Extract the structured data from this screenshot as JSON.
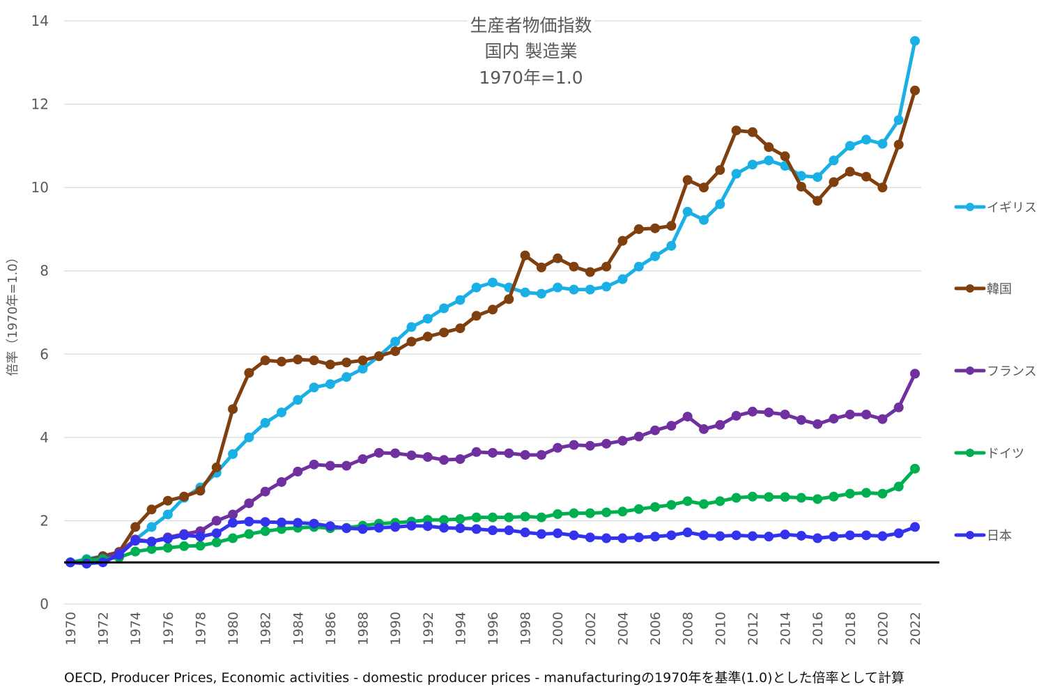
{
  "chart_data": {
    "type": "line",
    "title_lines": [
      "生産者物価指数",
      "国内 製造業",
      "1970年=1.0"
    ],
    "ylabel": "倍率（1970年=1.0）",
    "xlabel": "",
    "ylim": [
      0,
      14
    ],
    "yticks": [
      0,
      2,
      4,
      6,
      8,
      10,
      12,
      14
    ],
    "x": [
      1970,
      1971,
      1972,
      1973,
      1974,
      1975,
      1976,
      1977,
      1978,
      1979,
      1980,
      1981,
      1982,
      1983,
      1984,
      1985,
      1986,
      1987,
      1988,
      1989,
      1990,
      1991,
      1992,
      1993,
      1994,
      1995,
      1996,
      1997,
      1998,
      1999,
      2000,
      2001,
      2002,
      2003,
      2004,
      2005,
      2006,
      2007,
      2008,
      2009,
      2010,
      2011,
      2012,
      2013,
      2014,
      2015,
      2016,
      2017,
      2018,
      2019,
      2020,
      2021,
      2022
    ],
    "xtick_labels": [
      "1970",
      "1972",
      "1974",
      "1976",
      "1978",
      "1980",
      "1982",
      "1984",
      "1986",
      "1988",
      "1990",
      "1992",
      "1994",
      "1996",
      "1998",
      "2000",
      "2002",
      "2004",
      "2006",
      "2008",
      "2010",
      "2012",
      "2014",
      "2016",
      "2018",
      "2020",
      "2022"
    ],
    "reference_line": 1.0,
    "grid": true,
    "legend_position": "right",
    "series": [
      {
        "name": "イギリス",
        "color": "#1ab0e6",
        "values": [
          1.0,
          1.08,
          1.15,
          1.25,
          1.55,
          1.85,
          2.15,
          2.55,
          2.8,
          3.15,
          3.6,
          4.0,
          4.35,
          4.6,
          4.9,
          5.2,
          5.28,
          5.45,
          5.65,
          5.95,
          6.3,
          6.65,
          6.85,
          7.1,
          7.3,
          7.6,
          7.72,
          7.6,
          7.48,
          7.45,
          7.6,
          7.55,
          7.55,
          7.62,
          7.8,
          8.1,
          8.35,
          8.6,
          9.42,
          9.22,
          9.6,
          10.33,
          10.55,
          10.65,
          10.52,
          10.28,
          10.25,
          10.65,
          11.0,
          11.15,
          11.05,
          11.62,
          13.52
        ]
      },
      {
        "name": "韓国",
        "color": "#7f3f0f",
        "values": [
          1.0,
          1.05,
          1.15,
          1.25,
          1.85,
          2.27,
          2.48,
          2.58,
          2.72,
          3.28,
          4.68,
          5.55,
          5.85,
          5.82,
          5.87,
          5.85,
          5.75,
          5.8,
          5.85,
          5.95,
          6.07,
          6.3,
          6.42,
          6.52,
          6.62,
          6.92,
          7.07,
          7.32,
          8.37,
          8.08,
          8.3,
          8.1,
          7.97,
          8.1,
          8.72,
          9.0,
          9.02,
          9.08,
          10.18,
          10.0,
          10.42,
          11.37,
          11.33,
          10.97,
          10.75,
          10.02,
          9.68,
          10.13,
          10.38,
          10.26,
          10.0,
          11.03,
          12.33
        ]
      },
      {
        "name": "フランス",
        "color": "#7030a0",
        "values": [
          1.0,
          1.05,
          1.1,
          1.22,
          1.55,
          1.5,
          1.6,
          1.68,
          1.75,
          2.0,
          2.15,
          2.42,
          2.7,
          2.93,
          3.18,
          3.35,
          3.32,
          3.32,
          3.48,
          3.63,
          3.62,
          3.57,
          3.53,
          3.46,
          3.48,
          3.65,
          3.63,
          3.62,
          3.58,
          3.58,
          3.75,
          3.82,
          3.8,
          3.85,
          3.92,
          4.02,
          4.17,
          4.28,
          4.5,
          4.2,
          4.3,
          4.52,
          4.62,
          4.6,
          4.55,
          4.42,
          4.32,
          4.45,
          4.55,
          4.55,
          4.44,
          4.72,
          5.53
        ]
      },
      {
        "name": "ドイツ",
        "color": "#00b050",
        "values": [
          1.0,
          1.05,
          1.08,
          1.12,
          1.26,
          1.32,
          1.35,
          1.39,
          1.4,
          1.48,
          1.58,
          1.68,
          1.75,
          1.8,
          1.83,
          1.85,
          1.82,
          1.83,
          1.88,
          1.93,
          1.95,
          1.98,
          2.02,
          2.02,
          2.04,
          2.08,
          2.08,
          2.08,
          2.1,
          2.08,
          2.16,
          2.18,
          2.18,
          2.2,
          2.22,
          2.28,
          2.33,
          2.38,
          2.47,
          2.4,
          2.47,
          2.55,
          2.58,
          2.57,
          2.57,
          2.55,
          2.52,
          2.58,
          2.65,
          2.67,
          2.65,
          2.82,
          3.25
        ]
      },
      {
        "name": "日本",
        "color": "#3333ee",
        "values": [
          1.0,
          0.97,
          1.0,
          1.18,
          1.52,
          1.5,
          1.57,
          1.65,
          1.62,
          1.7,
          1.95,
          1.98,
          1.97,
          1.96,
          1.95,
          1.93,
          1.87,
          1.82,
          1.8,
          1.83,
          1.85,
          1.88,
          1.87,
          1.83,
          1.82,
          1.8,
          1.77,
          1.77,
          1.72,
          1.68,
          1.7,
          1.65,
          1.6,
          1.58,
          1.58,
          1.6,
          1.62,
          1.65,
          1.72,
          1.65,
          1.63,
          1.65,
          1.63,
          1.62,
          1.67,
          1.64,
          1.58,
          1.62,
          1.65,
          1.65,
          1.63,
          1.7,
          1.85
        ]
      }
    ],
    "source_note": "OECD, Producer Prices, Economic activities - domestic producer prices - manufacturingの1970年を基準(1.0)とした倍率として計算"
  }
}
